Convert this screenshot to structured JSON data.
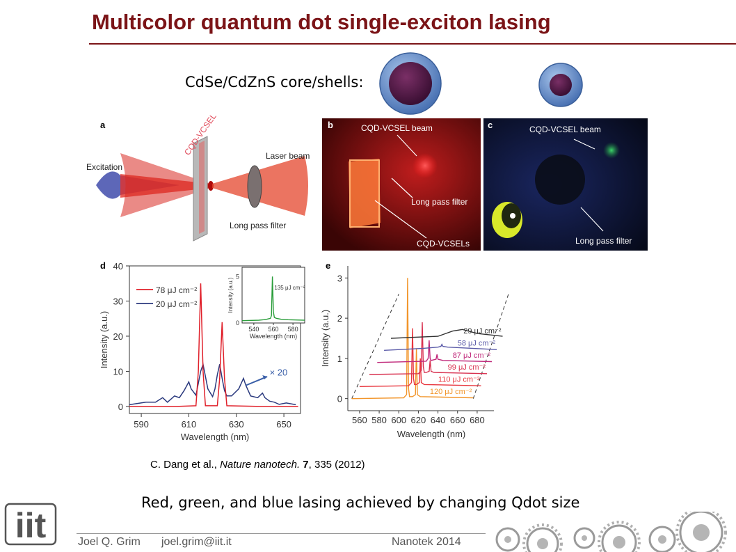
{
  "slide": {
    "title": "Multicolor quantum dot single-exciton lasing",
    "coreshell_label": "CdSe/CdZnS core/shells:",
    "citation": {
      "authors": "C. Dang et al., ",
      "journal": "Nature nanotech.",
      "volume": " 7",
      "rest": ", 335 (2012)"
    },
    "summary": "Red, green, and blue lasing achieved by changing Qdot size",
    "footer": {
      "author": "Joel Q. Grim",
      "email": "joel.grim@iit.it",
      "event": "Nanotek 2014"
    },
    "logo_text": "iit"
  },
  "panel_a": {
    "letter": "a",
    "label_device": "CQD-VCSEL",
    "label_excitation": "Excitation",
    "label_laser": "Laser beam",
    "label_filter": "Long pass filter"
  },
  "panel_b": {
    "letter": "b",
    "label_beam": "CQD-VCSEL beam",
    "label_filter": "Long pass filter",
    "label_vcsels": "CQD-VCSELs"
  },
  "panel_c": {
    "letter": "c",
    "label_beam": "CQD-VCSEL beam",
    "label_filter": "Long pass filter"
  },
  "colors": {
    "title": "#7b1417",
    "red_series": "#e0202a",
    "blue_series": "#2b3a7e",
    "green_series": "#2a9d3a"
  },
  "chart_data": [
    {
      "panel": "d",
      "type": "line",
      "xlabel": "Wavelength (nm)",
      "ylabel": "Intensity (a.u.)",
      "xlim": [
        585,
        657
      ],
      "ylim": [
        -2,
        40
      ],
      "xticks": [
        590,
        610,
        630,
        650
      ],
      "yticks": [
        0,
        10,
        20,
        30,
        40
      ],
      "annotation": "× 20",
      "series": [
        {
          "name": "78 μJ cm⁻²",
          "color": "#e0202a",
          "x": [
            585,
            605,
            613,
            614,
            615,
            616,
            617,
            622,
            623,
            624,
            625,
            626,
            640,
            656
          ],
          "y": [
            0,
            0,
            0.2,
            10,
            35,
            10,
            0.2,
            0.2,
            8,
            24,
            8,
            0.2,
            0,
            0
          ]
        },
        {
          "name": "20 μJ cm⁻²",
          "color": "#2b3a7e",
          "x": [
            585,
            592,
            596,
            599,
            601,
            604,
            606,
            608,
            610,
            611,
            613,
            615,
            616,
            618,
            620,
            621,
            622,
            623,
            624,
            625,
            626,
            628,
            631,
            633,
            634,
            636,
            639,
            641,
            642,
            644,
            646,
            648,
            651,
            655
          ],
          "y": [
            0.5,
            1.2,
            1.2,
            2.5,
            1.2,
            3,
            2.5,
            4.5,
            7,
            5,
            3.2,
            10,
            12,
            5,
            2.8,
            5,
            9,
            12,
            8,
            4.5,
            3,
            3,
            5,
            8,
            6,
            3,
            2.5,
            3.8,
            2.5,
            1.5,
            1.2,
            0.6,
            1,
            0.5
          ]
        }
      ],
      "inset": {
        "type": "line",
        "xlabel": "Wavelength (nm)",
        "ylabel": "Intensity (a.u.)",
        "xlim": [
          528,
          592
        ],
        "ylim": [
          0,
          6
        ],
        "xticks": [
          540,
          560,
          580
        ],
        "yticks": [
          0,
          5
        ],
        "series": [
          {
            "name": "135 μJ cm⁻²",
            "color": "#2a9d3a",
            "x": [
              528,
              545,
              550,
              553,
              557,
              558,
              559,
              560,
              561,
              563,
              568,
              575,
              592
            ],
            "y": [
              0.25,
              0.3,
              0.35,
              0.4,
              0.5,
              0.8,
              5,
              1.2,
              0.6,
              0.5,
              0.4,
              0.35,
              0.3
            ]
          }
        ]
      }
    },
    {
      "panel": "e",
      "type": "line",
      "xlabel": "Wavelength (nm)",
      "ylabel": "Intensity (a.u.)",
      "xlim": [
        548,
        690
      ],
      "ylim": [
        -0.3,
        3.3
      ],
      "xticks": [
        560,
        580,
        600,
        620,
        640,
        660,
        680
      ],
      "yticks": [
        0,
        1,
        2,
        3
      ],
      "series": [
        {
          "name": "120 μJ cm⁻²",
          "color": "#f2952a",
          "offset": 0,
          "x": [
            552,
            605,
            608,
            609,
            610,
            611,
            614,
            617,
            618,
            619,
            622,
            676
          ],
          "y": [
            0,
            0.02,
            0.1,
            3.0,
            0.25,
            0.05,
            0.05,
            0.1,
            1.25,
            0.1,
            0.05,
            0.02
          ]
        },
        {
          "name": "110 μJ cm⁻²",
          "color": "#e8363e",
          "offset": 0.3,
          "x": [
            560,
            610,
            613,
            614,
            615,
            616,
            618,
            621,
            622,
            623,
            626,
            684
          ],
          "y": [
            0,
            0.02,
            0.1,
            1.45,
            0.2,
            0.05,
            0.05,
            0.1,
            0.7,
            0.1,
            0.05,
            0.02
          ]
        },
        {
          "name": "99 μJ cm⁻²",
          "color": "#d8304f",
          "offset": 0.6,
          "x": [
            570,
            620,
            623,
            624,
            625,
            626,
            628,
            631,
            632,
            633,
            636,
            690
          ],
          "y": [
            0,
            0.02,
            0.1,
            1.3,
            0.2,
            0.05,
            0.05,
            0.08,
            0.35,
            0.08,
            0.05,
            0.02
          ]
        },
        {
          "name": "87 μJ cm⁻²",
          "color": "#c0287a",
          "offset": 0.9,
          "x": [
            578,
            628,
            630,
            631,
            632,
            633,
            638,
            639,
            640,
            645,
            695
          ],
          "y": [
            0,
            0.03,
            0.1,
            0.55,
            0.1,
            0.05,
            0.08,
            0.2,
            0.08,
            0.05,
            0.02
          ]
        },
        {
          "name": "58 μJ cm⁻²",
          "color": "#5a5aa8",
          "offset": 1.2,
          "x": [
            585,
            625,
            640,
            643,
            644,
            645,
            650,
            700
          ],
          "y": [
            0,
            0.05,
            0.08,
            0.1,
            0.15,
            0.1,
            0.08,
            0.02
          ]
        },
        {
          "name": "29 μJ cm⁻²",
          "color": "#333333",
          "offset": 1.5,
          "x": [
            592,
            640,
            655,
            665,
            680,
            706
          ],
          "y": [
            0,
            0.05,
            0.18,
            0.22,
            0.12,
            0.05
          ]
        }
      ]
    }
  ]
}
